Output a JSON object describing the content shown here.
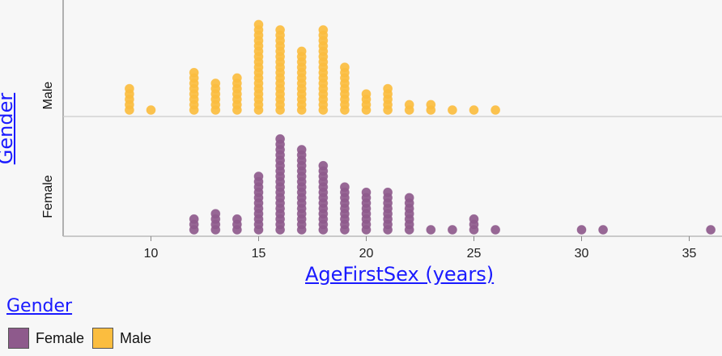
{
  "chart_data": {
    "type": "scatter",
    "subtype": "dot-plot",
    "xlabel": "AgeFirstSex (years)",
    "ylabel": "Gender",
    "xlim": [
      6,
      36.5
    ],
    "xticks": [
      10,
      15,
      20,
      25,
      30,
      35
    ],
    "categories": [
      "Male",
      "Female"
    ],
    "series": [
      {
        "name": "Male",
        "color": "#fbbd3f",
        "x": [
          9,
          10,
          12,
          13,
          14,
          15,
          16,
          17,
          18,
          19,
          20,
          21,
          22,
          23,
          24,
          25,
          26
        ],
        "counts": [
          5,
          1,
          8,
          6,
          7,
          17,
          16,
          12,
          16,
          9,
          4,
          5,
          2,
          2,
          1,
          1,
          1
        ]
      },
      {
        "name": "Female",
        "color": "#8e5a8c",
        "x": [
          12,
          13,
          14,
          15,
          16,
          17,
          18,
          19,
          20,
          21,
          22,
          23,
          24,
          25,
          26,
          30,
          31,
          36
        ],
        "counts": [
          3,
          4,
          3,
          11,
          18,
          16,
          13,
          9,
          8,
          8,
          7,
          1,
          1,
          3,
          1,
          1,
          1,
          1
        ]
      }
    ],
    "grid": false,
    "legend": "bottom-left"
  },
  "legend": {
    "title": "Gender",
    "items": [
      {
        "label": "Female",
        "color": "#8e5a8c"
      },
      {
        "label": "Male",
        "color": "#fbbd3f"
      }
    ]
  }
}
